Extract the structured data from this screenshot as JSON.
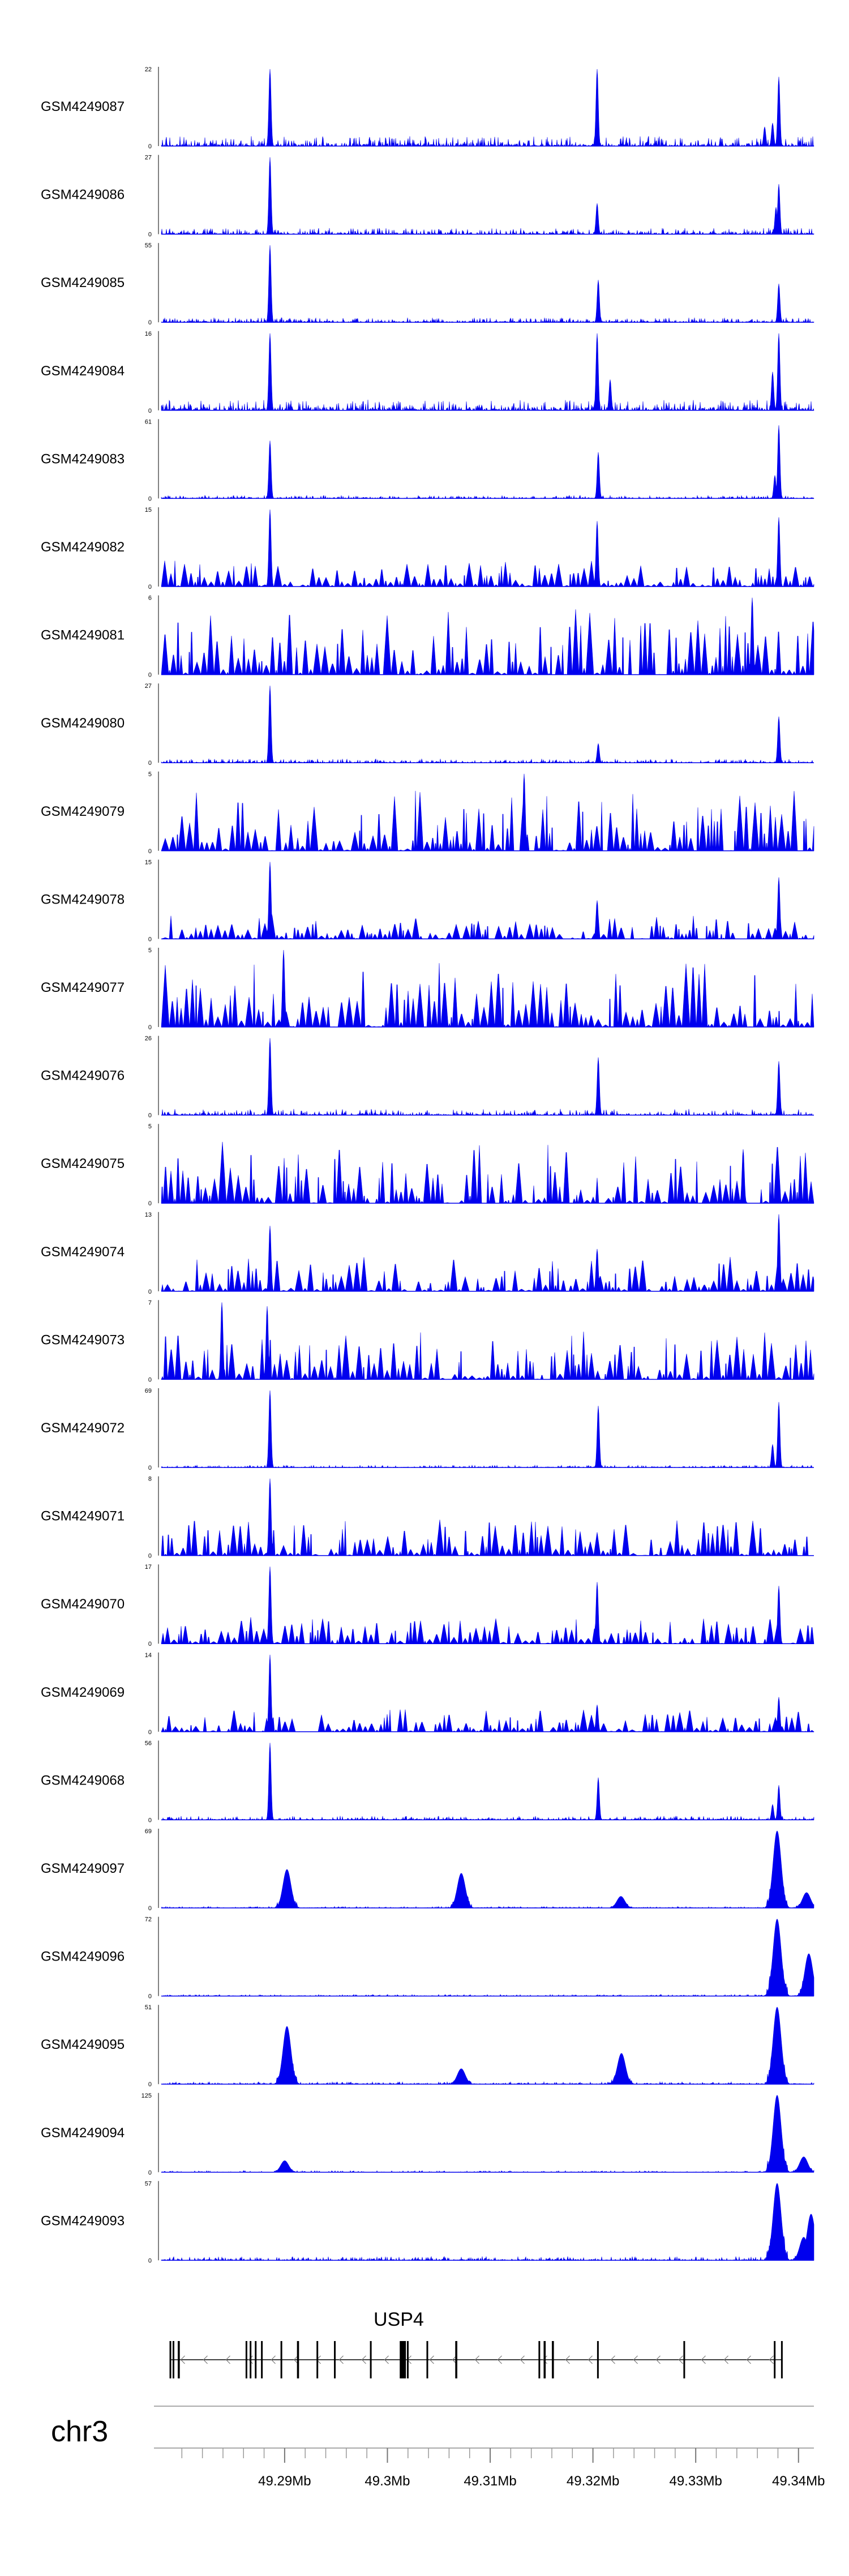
{
  "chart_data": {
    "type": "area",
    "chromosome": "chr3",
    "x_range_mb": [
      49.278,
      49.3415
    ],
    "tracks": [
      {
        "name": "GSM4249087",
        "ymax": "22",
        "ymin": "0",
        "peaks": [
          [
            49.2886,
            1.0
          ],
          [
            49.3204,
            1.0
          ],
          [
            49.3381,
            0.9
          ],
          [
            49.3375,
            0.3
          ],
          [
            49.3367,
            0.25
          ]
        ],
        "noise": 0.13,
        "style": "spiky"
      },
      {
        "name": "GSM4249086",
        "ymax": "27",
        "ymin": "0",
        "peaks": [
          [
            49.2886,
            1.0
          ],
          [
            49.3204,
            0.4
          ],
          [
            49.3381,
            0.65
          ],
          [
            49.3378,
            0.35
          ]
        ],
        "noise": 0.08,
        "style": "spiky"
      },
      {
        "name": "GSM4249085",
        "ymax": "55",
        "ymin": "0",
        "peaks": [
          [
            49.2886,
            1.0
          ],
          [
            49.3205,
            0.55
          ],
          [
            49.3381,
            0.5
          ]
        ],
        "noise": 0.06,
        "style": "spiky"
      },
      {
        "name": "GSM4249084",
        "ymax": "16",
        "ymin": "0",
        "peaks": [
          [
            49.2886,
            1.0
          ],
          [
            49.3204,
            1.0
          ],
          [
            49.3217,
            0.4
          ],
          [
            49.3381,
            1.0
          ],
          [
            49.3375,
            0.5
          ]
        ],
        "noise": 0.14,
        "style": "spiky"
      },
      {
        "name": "GSM4249083",
        "ymax": "61",
        "ymin": "0",
        "peaks": [
          [
            49.2886,
            0.75
          ],
          [
            49.3205,
            0.6
          ],
          [
            49.3381,
            0.95
          ],
          [
            49.3377,
            0.3
          ]
        ],
        "noise": 0.04,
        "style": "spiky"
      },
      {
        "name": "GSM4249082",
        "ymax": "15",
        "ymin": "0",
        "peaks": [
          [
            49.2886,
            1.0
          ],
          [
            49.3204,
            0.85
          ],
          [
            49.3381,
            0.9
          ]
        ],
        "noise": 0.35,
        "style": "tri"
      },
      {
        "name": "GSM4249081",
        "ymax": "6",
        "ymin": "0",
        "peaks": [
          [
            49.3355,
            1.0
          ]
        ],
        "noise": 0.85,
        "style": "tri"
      },
      {
        "name": "GSM4249080",
        "ymax": "27",
        "ymin": "0",
        "peaks": [
          [
            49.2886,
            1.0
          ],
          [
            49.3205,
            0.25
          ],
          [
            49.3381,
            0.6
          ]
        ],
        "noise": 0.05,
        "style": "spiky"
      },
      {
        "name": "GSM4249079",
        "ymax": "5",
        "ymin": "0",
        "peaks": [
          [
            49.3133,
            1.0
          ]
        ],
        "noise": 0.8,
        "style": "tri"
      },
      {
        "name": "GSM4249078",
        "ymax": "15",
        "ymin": "0",
        "peaks": [
          [
            49.2886,
            1.0
          ],
          [
            49.3204,
            0.5
          ],
          [
            49.3381,
            0.8
          ]
        ],
        "noise": 0.3,
        "style": "tri"
      },
      {
        "name": "GSM4249077",
        "ymax": "5",
        "ymin": "0",
        "peaks": [
          [
            49.2899,
            1.0
          ]
        ],
        "noise": 0.85,
        "style": "tri"
      },
      {
        "name": "GSM4249076",
        "ymax": "26",
        "ymin": "0",
        "peaks": [
          [
            49.2886,
            1.0
          ],
          [
            49.3205,
            0.75
          ],
          [
            49.3381,
            0.7
          ]
        ],
        "noise": 0.08,
        "style": "spiky"
      },
      {
        "name": "GSM4249075",
        "ymax": "5",
        "ymin": "0",
        "peaks": [
          [
            49.3346,
            0.7
          ]
        ],
        "noise": 0.8,
        "style": "tri"
      },
      {
        "name": "GSM4249074",
        "ymax": "13",
        "ymin": "0",
        "peaks": [
          [
            49.2886,
            0.85
          ],
          [
            49.3204,
            0.55
          ],
          [
            49.3381,
            1.0
          ]
        ],
        "noise": 0.45,
        "style": "tri"
      },
      {
        "name": "GSM4249073",
        "ymax": "7",
        "ymin": "0",
        "peaks": [
          [
            49.2839,
            1.0
          ],
          [
            49.2883,
            0.95
          ]
        ],
        "noise": 0.7,
        "style": "tri"
      },
      {
        "name": "GSM4249072",
        "ymax": "69",
        "ymin": "0",
        "peaks": [
          [
            49.2886,
            1.0
          ],
          [
            49.3205,
            0.8
          ],
          [
            49.3381,
            0.85
          ],
          [
            49.3375,
            0.3
          ]
        ],
        "noise": 0.03,
        "style": "spiky"
      },
      {
        "name": "GSM4249071",
        "ymax": "8",
        "ymin": "0",
        "peaks": [
          [
            49.2886,
            1.0
          ]
        ],
        "noise": 0.5,
        "style": "tri"
      },
      {
        "name": "GSM4249070",
        "ymax": "17",
        "ymin": "0",
        "peaks": [
          [
            49.2886,
            1.0
          ],
          [
            49.3204,
            0.8
          ],
          [
            49.3381,
            0.75
          ]
        ],
        "noise": 0.35,
        "style": "tri"
      },
      {
        "name": "GSM4249069",
        "ymax": "14",
        "ymin": "0",
        "peaks": [
          [
            49.2886,
            1.0
          ],
          [
            49.3204,
            0.35
          ],
          [
            49.3381,
            0.45
          ]
        ],
        "noise": 0.3,
        "style": "tri"
      },
      {
        "name": "GSM4249068",
        "ymax": "56",
        "ymin": "0",
        "peaks": [
          [
            49.2886,
            1.0
          ],
          [
            49.3205,
            0.55
          ],
          [
            49.3381,
            0.45
          ],
          [
            49.3375,
            0.2
          ]
        ],
        "noise": 0.05,
        "style": "spiky"
      },
      {
        "name": "GSM4249097",
        "ymax": "69",
        "ymin": "0",
        "peaks": [
          [
            49.2902,
            0.5
          ],
          [
            49.3072,
            0.45
          ],
          [
            49.3227,
            0.15
          ],
          [
            49.3379,
            1.0
          ],
          [
            49.3408,
            0.2
          ]
        ],
        "noise": 0.02,
        "style": "broad"
      },
      {
        "name": "GSM4249096",
        "ymax": "72",
        "ymin": "0",
        "peaks": [
          [
            49.3379,
            1.0
          ],
          [
            49.341,
            0.55
          ]
        ],
        "noise": 0.02,
        "style": "broad"
      },
      {
        "name": "GSM4249095",
        "ymax": "51",
        "ymin": "0",
        "peaks": [
          [
            49.2902,
            0.75
          ],
          [
            49.3072,
            0.2
          ],
          [
            49.3228,
            0.4
          ],
          [
            49.3379,
            1.0
          ]
        ],
        "noise": 0.03,
        "style": "broad"
      },
      {
        "name": "GSM4249094",
        "ymax": "125",
        "ymin": "0",
        "peaks": [
          [
            49.29,
            0.15
          ],
          [
            49.3379,
            1.0
          ],
          [
            49.3405,
            0.2
          ]
        ],
        "noise": 0.02,
        "style": "broad"
      },
      {
        "name": "GSM4249093",
        "ymax": "57",
        "ymin": "0",
        "peaks": [
          [
            49.3379,
            1.0
          ],
          [
            49.3412,
            0.6
          ],
          [
            49.3405,
            0.3
          ]
        ],
        "noise": 0.05,
        "style": "broad"
      }
    ],
    "gene": {
      "name": "USP4",
      "start_mb": 49.2788,
      "end_mb": 49.3384,
      "strand": "-",
      "exons_mb": [
        [
          49.2788,
          49.2789
        ],
        [
          49.2791,
          49.2792
        ],
        [
          49.2796,
          49.2798
        ],
        [
          49.2862,
          49.2863
        ],
        [
          49.2866,
          49.2867
        ],
        [
          49.2871,
          49.2872
        ],
        [
          49.2877,
          49.2878
        ],
        [
          49.2896,
          49.2897
        ],
        [
          49.2912,
          49.2914
        ],
        [
          49.2931,
          49.2932
        ],
        [
          49.2948,
          49.2949
        ],
        [
          49.2983,
          49.2984
        ],
        [
          49.3012,
          49.3018
        ],
        [
          49.3019,
          49.302
        ],
        [
          49.3038,
          49.3039
        ],
        [
          49.3066,
          49.3068
        ],
        [
          49.3147,
          49.3148
        ],
        [
          49.3152,
          49.3154
        ],
        [
          49.316,
          49.3162
        ],
        [
          49.3204,
          49.3205
        ],
        [
          49.3288,
          49.3289
        ],
        [
          49.3376,
          49.3377
        ],
        [
          49.3383,
          49.3384
        ]
      ]
    },
    "axis": {
      "ticks_mb": [
        49.29,
        49.3,
        49.31,
        49.32,
        49.33,
        49.34
      ],
      "tick_labels": [
        "49.29Mb",
        "49.3Mb",
        "49.31Mb",
        "49.32Mb",
        "49.33Mb",
        "49.34Mb"
      ],
      "minor_tick_step_mb": 0.002
    },
    "colors": {
      "signal": "#0000ee",
      "baseline": "#000000",
      "gene": "#000000",
      "axis": "#888888"
    }
  }
}
